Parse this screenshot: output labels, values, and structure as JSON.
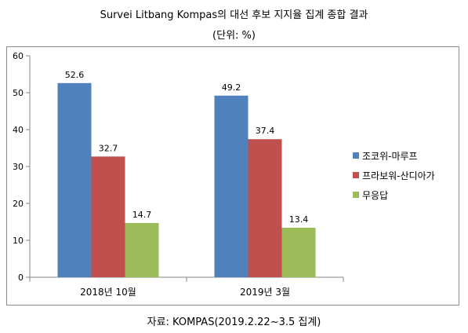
{
  "title": "Survei Litbang Kompas의 대선 후보 지지율 집계 종합 결과",
  "unit": "(단위: %)",
  "source": "자료: KOMPAS(2019.2.22~3.5 집계)",
  "chart_data": {
    "type": "bar",
    "categories": [
      "2018년 10월",
      "2019년 3월"
    ],
    "series": [
      {
        "name": "조코위-마루프",
        "color": "#4f81bd",
        "values": [
          52.6,
          49.2
        ]
      },
      {
        "name": "프라보워-산디아가",
        "color": "#c0504d",
        "values": [
          32.7,
          37.4
        ]
      },
      {
        "name": "무응답",
        "color": "#9bbb59",
        "values": [
          14.7,
          13.4
        ]
      }
    ],
    "ylim": [
      0,
      60
    ],
    "yticks": [
      0,
      10,
      20,
      30,
      40,
      50,
      60
    ],
    "legend_position": "right",
    "grid": false
  }
}
